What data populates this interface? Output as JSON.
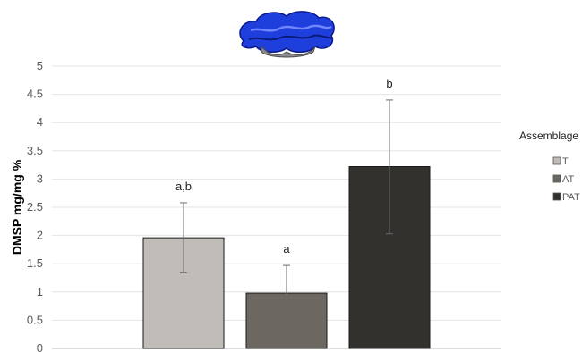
{
  "chart_data": {
    "type": "bar",
    "categories": [
      "T",
      "AT",
      "PAT"
    ],
    "values": [
      1.96,
      0.98,
      3.22
    ],
    "error_bars": [
      [
        1.34,
        2.58
      ],
      [
        0.49,
        1.47
      ],
      [
        2.03,
        4.4
      ]
    ],
    "annotations": [
      "a,b",
      "a",
      "b"
    ],
    "colors": [
      "#c0bcb8",
      "#6d6761",
      "#32312e"
    ],
    "ylabel": "DMSP mg/mg %",
    "ylim": [
      0,
      5
    ],
    "yticks": [
      "0",
      "0.5",
      "1",
      "1.5",
      "2",
      "2.5",
      "3",
      "3.5",
      "4",
      "4.5",
      "5"
    ],
    "grid": true,
    "legend": {
      "title": "Assemblage",
      "position": "right",
      "entries": [
        "T",
        "AT",
        "PAT"
      ]
    },
    "header_image": "giant-clam-illustration"
  }
}
